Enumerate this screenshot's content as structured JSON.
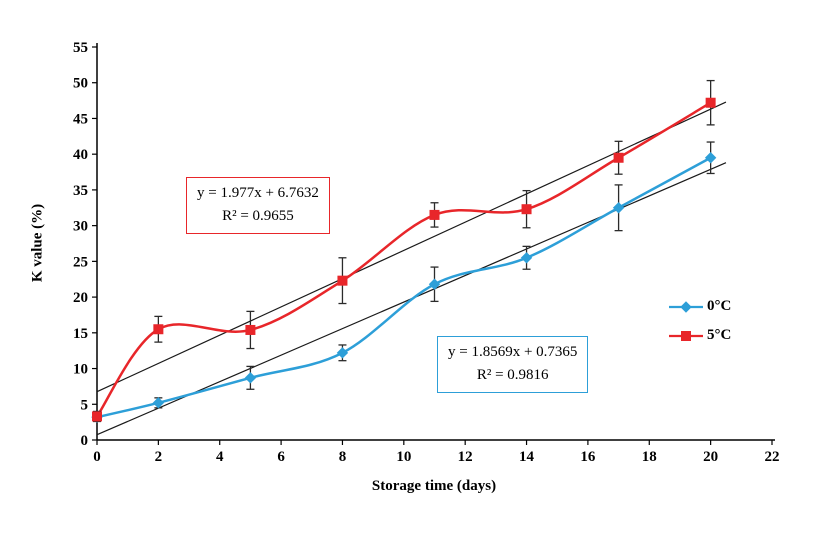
{
  "chart_data": {
    "type": "line",
    "title": "",
    "xlabel": "Storage time (days)",
    "ylabel": "K value (%)",
    "xlim": [
      0,
      22
    ],
    "ylim": [
      0,
      55
    ],
    "x_ticks": [
      0,
      2,
      4,
      6,
      8,
      10,
      12,
      14,
      16,
      18,
      20,
      22
    ],
    "y_ticks": [
      0,
      5,
      10,
      15,
      20,
      25,
      30,
      35,
      40,
      45,
      50,
      55
    ],
    "grid": false,
    "legend_position": "right",
    "x": [
      0,
      2,
      5,
      8,
      11,
      14,
      17,
      20
    ],
    "series": [
      {
        "name": "0°C",
        "color": "#2d9fd8",
        "marker": "diamond",
        "values": [
          3.2,
          5.2,
          8.7,
          12.2,
          21.8,
          25.5,
          32.5,
          39.5
        ],
        "errors": [
          0.6,
          0.7,
          1.6,
          1.1,
          2.4,
          1.6,
          3.2,
          2.2
        ],
        "trendline": {
          "slope": 1.8569,
          "intercept": 0.7365,
          "x_start": 0,
          "x_end": 20.5
        }
      },
      {
        "name": "5°C",
        "color": "#e8262a",
        "marker": "square",
        "values": [
          3.3,
          15.5,
          15.4,
          22.3,
          31.5,
          32.3,
          39.5,
          47.2
        ],
        "errors": [
          0.7,
          1.8,
          2.6,
          3.2,
          1.7,
          2.6,
          2.3,
          3.1
        ],
        "trendline": {
          "slope": 1.977,
          "intercept": 6.7632,
          "x_start": 0,
          "x_end": 20.5
        }
      }
    ],
    "legend": [
      {
        "label": "0°C"
      },
      {
        "label": "5°C"
      }
    ],
    "annotations": [
      {
        "line1": "y = 1.977x + 6.7632",
        "line2": "R² = 0.9655",
        "border": "#e8262a",
        "series": "5°C"
      },
      {
        "line1": "y = 1.8569x + 0.7365",
        "line2": "R² = 0.9816",
        "border": "#2d9fd8",
        "series": "0°C"
      }
    ],
    "colors": {
      "axis": "#000000",
      "trendline": "#1a1a1a",
      "error_bar": "#2b2b2b"
    }
  }
}
